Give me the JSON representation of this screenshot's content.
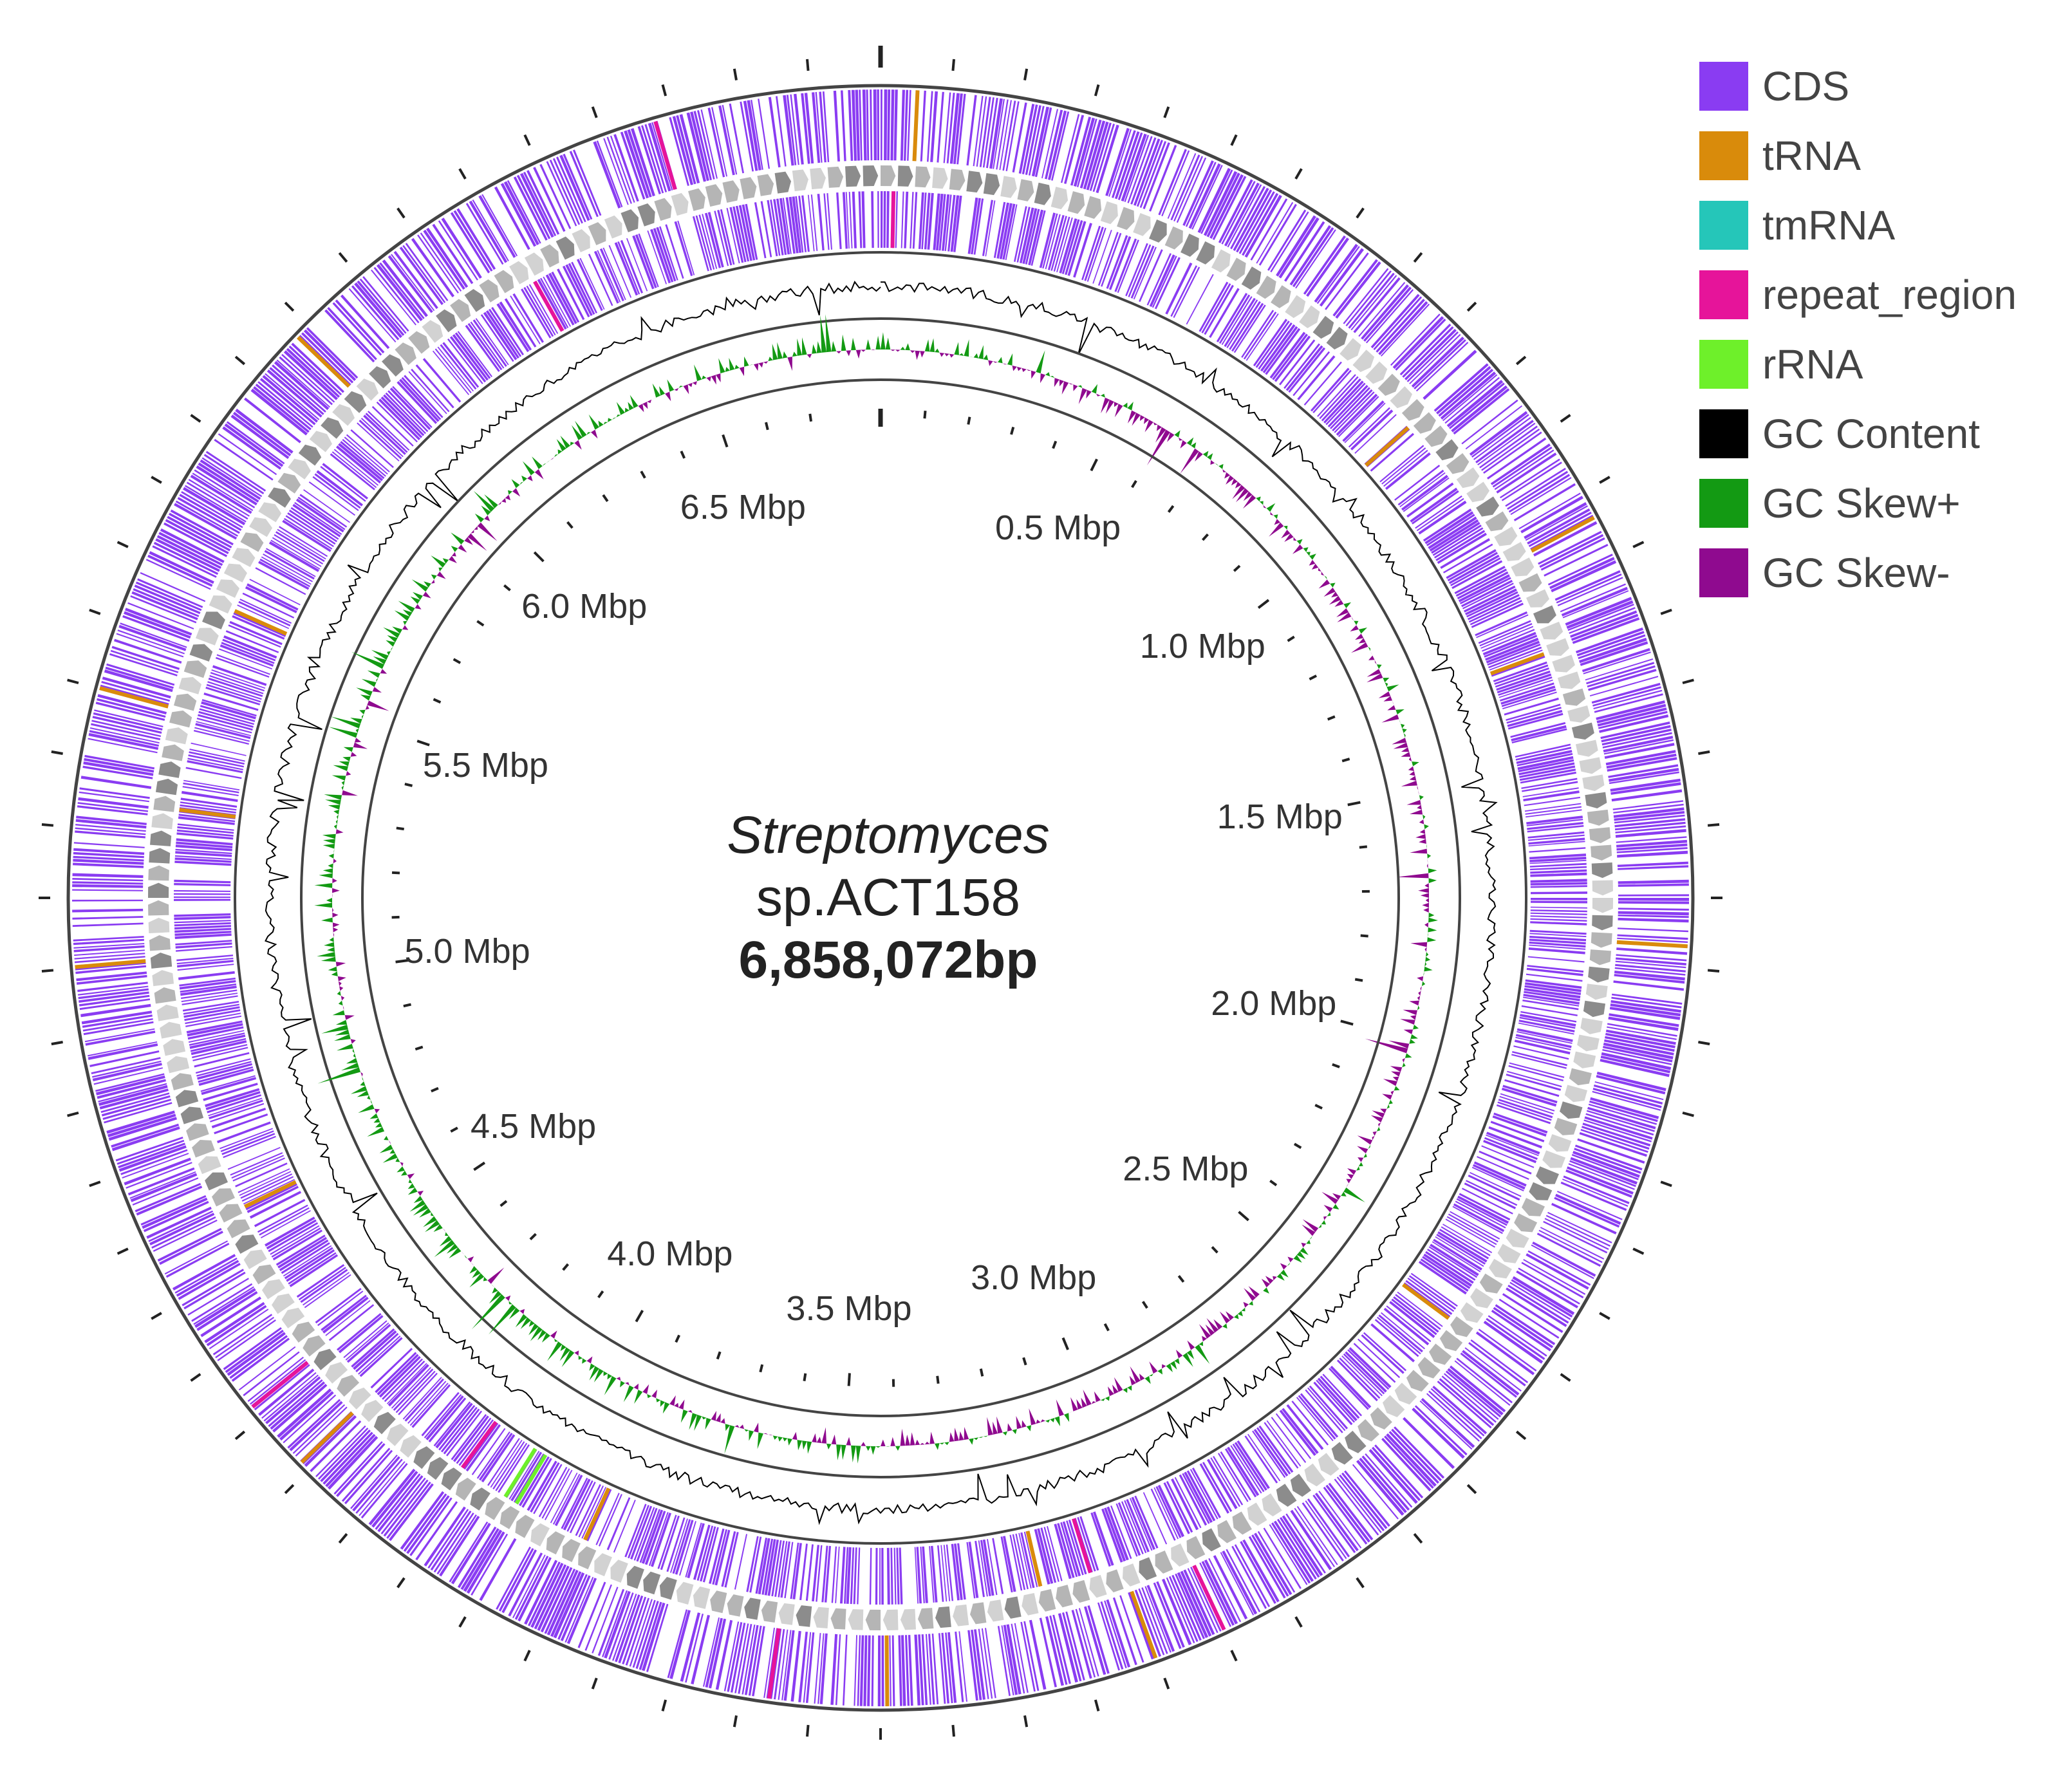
{
  "legend": [
    {
      "label": "CDS",
      "color": "#8a3cf2"
    },
    {
      "label": "tRNA",
      "color": "#d98b0b"
    },
    {
      "label": "tmRNA",
      "color": "#25c6b9"
    },
    {
      "label": "repeat_region",
      "color": "#e6149a"
    },
    {
      "label": "rRNA",
      "color": "#6ef02a"
    },
    {
      "label": "GC Content",
      "color": "#000000"
    },
    {
      "label": "GC Skew+",
      "color": "#139a13"
    },
    {
      "label": "GC Skew-",
      "color": "#8f0a8f"
    }
  ],
  "center": {
    "genus": "Streptomyces",
    "strain": "sp.ACT158",
    "genome_size": "6,858,072bp"
  },
  "genome_length_bp": 6858072,
  "axis_labels": [
    {
      "text": "0.5 Mbp",
      "position_mbp": 0.5
    },
    {
      "text": "1.0 Mbp",
      "position_mbp": 1.0
    },
    {
      "text": "1.5 Mbp",
      "position_mbp": 1.5
    },
    {
      "text": "2.0 Mbp",
      "position_mbp": 2.0
    },
    {
      "text": "2.5 Mbp",
      "position_mbp": 2.5
    },
    {
      "text": "3.0 Mbp",
      "position_mbp": 3.0
    },
    {
      "text": "3.5 Mbp",
      "position_mbp": 3.5
    },
    {
      "text": "4.0 Mbp",
      "position_mbp": 4.0
    },
    {
      "text": "4.5 Mbp",
      "position_mbp": 4.5
    },
    {
      "text": "5.0 Mbp",
      "position_mbp": 5.0
    },
    {
      "text": "5.5 Mbp",
      "position_mbp": 5.5
    },
    {
      "text": "6.0 Mbp",
      "position_mbp": 6.0
    },
    {
      "text": "6.5 Mbp",
      "position_mbp": 6.5
    }
  ],
  "tracks": {
    "trna_positions_mbp": [
      0.05,
      0.92,
      1.18,
      1.33,
      1.78,
      2.41,
      3.05,
      3.18,
      3.42,
      3.9,
      4.3,
      4.65,
      5.05,
      5.28,
      5.43,
      5.6,
      5.98
    ],
    "repeat_positions_mbp": [
      0.02,
      2.95,
      3.1,
      3.58,
      4.12,
      4.4,
      6.3,
      6.55
    ],
    "rrna_positions_mbp": [
      4.02,
      4.04
    ]
  }
}
